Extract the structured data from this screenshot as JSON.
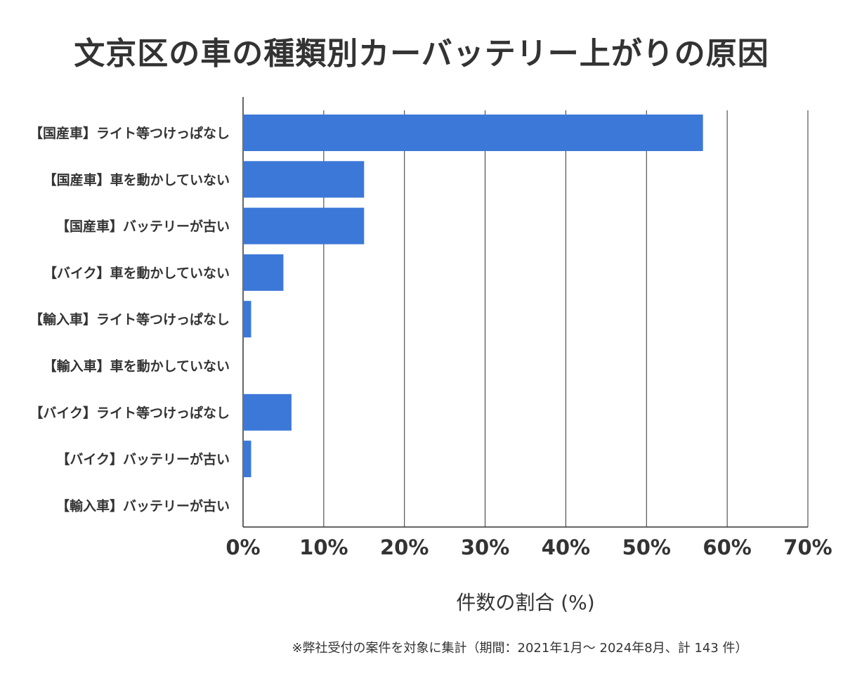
{
  "chart_data": {
    "type": "bar",
    "orientation": "horizontal",
    "title": "文京区の車の種類別カーバッテリー上がりの原因",
    "categories": [
      "【国産車】ライト等つけっぱなし",
      "【国産車】車を動かしていない",
      "【国産車】バッテリーが古い",
      "【バイク】車を動かしていない",
      "【輸入車】ライト等つけっぱなし",
      "【輸入車】車を動かしていない",
      "【バイク】ライト等つけっぱなし",
      "【バイク】バッテリーが古い",
      "【輸入車】バッテリーが古い"
    ],
    "values": [
      57,
      15,
      15,
      5,
      1,
      0,
      6,
      1,
      0
    ],
    "xlabel": "件数の割合 (%)",
    "ylabel": "",
    "xlim": [
      0,
      70
    ],
    "xticks": [
      "0%",
      "10%",
      "20%",
      "30%",
      "40%",
      "50%",
      "60%",
      "70%"
    ],
    "grid": true,
    "bar_color": "#3c78d8",
    "footnote": "※弊社受付の案件を対象に集計（期間：2021年1月～ 2024年8月、計 143 件）"
  }
}
